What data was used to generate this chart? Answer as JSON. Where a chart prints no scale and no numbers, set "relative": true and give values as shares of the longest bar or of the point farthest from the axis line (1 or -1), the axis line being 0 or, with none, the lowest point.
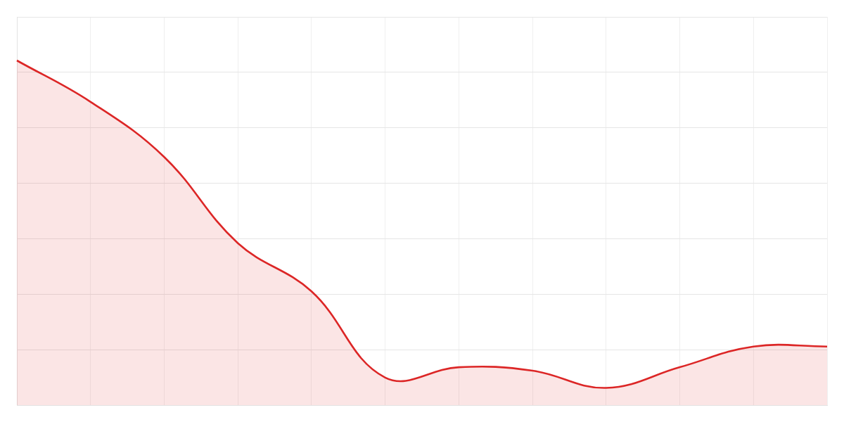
{
  "chart_data": {
    "type": "area",
    "relative": true,
    "grid": true,
    "tick_labels": false,
    "categories": [
      null,
      null,
      null,
      null,
      null,
      null,
      null,
      null,
      null,
      null,
      null,
      null
    ],
    "series": [
      {
        "color": "#dc2626",
        "values": [
          1,
          0.88,
          0.72,
          0.47,
          0.33,
          0.08,
          0.11,
          0.1,
          0.05,
          0.11,
          0.17,
          0.17
        ]
      }
    ]
  }
}
